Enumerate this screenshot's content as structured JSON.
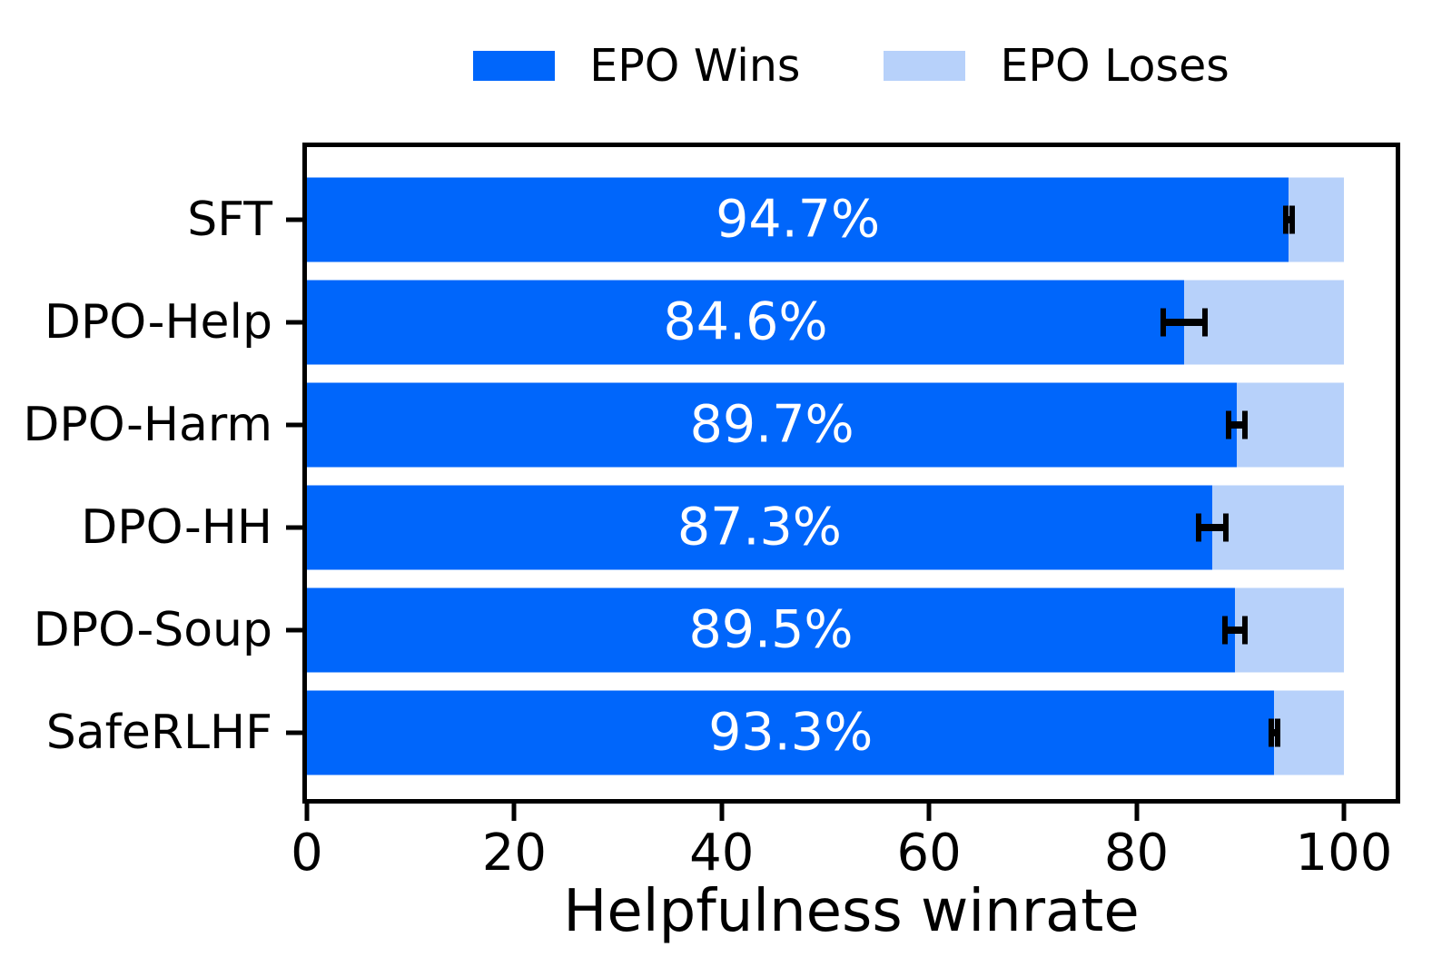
{
  "chart_data": {
    "type": "bar",
    "orientation": "horizontal",
    "stacked": true,
    "title": "",
    "xlabel": "Helpfulness winrate",
    "ylabel": "",
    "xlim": [
      0,
      105
    ],
    "total": 100,
    "x_ticks": [
      0,
      20,
      40,
      60,
      80,
      100
    ],
    "grid": false,
    "categories": [
      "SFT",
      "DPO-Help",
      "DPO-Harm",
      "DPO-HH",
      "DPO-Soup",
      "SafeRLHF"
    ],
    "series": [
      {
        "name": "EPO Wins",
        "color": "#0066FB",
        "values": [
          94.7,
          84.6,
          89.7,
          87.3,
          89.5,
          93.3
        ]
      },
      {
        "name": "EPO Loses",
        "color": "#B7D1FA",
        "values": [
          5.3,
          15.4,
          10.3,
          12.7,
          10.5,
          6.7
        ]
      }
    ],
    "bar_labels": [
      "94.7%",
      "84.6%",
      "89.7%",
      "87.3%",
      "89.5%",
      "93.3%"
    ],
    "error_bars": {
      "series": "EPO Wins",
      "color": "#000000",
      "values": [
        0.3,
        2.0,
        0.8,
        1.3,
        1.0,
        0.3
      ]
    },
    "legend": {
      "position": "top-center",
      "entries": [
        {
          "label": "EPO Wins",
          "color": "#0066FB"
        },
        {
          "label": "EPO Loses",
          "color": "#B7D1FA"
        }
      ]
    }
  }
}
